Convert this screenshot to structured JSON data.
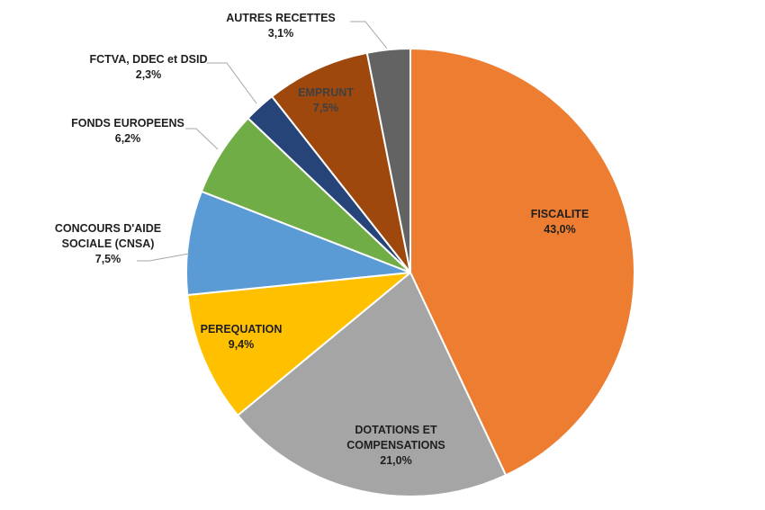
{
  "chart_data": {
    "type": "pie",
    "title": "",
    "slices": [
      {
        "label": [
          "FISCALITE"
        ],
        "pct": "43,0%",
        "value": 43.0,
        "color": "#ED7D31",
        "label_color": "#1f1f1f",
        "label_pos": "inside"
      },
      {
        "label": [
          "DOTATIONS ET",
          "COMPENSATIONS"
        ],
        "pct": "21,0%",
        "value": 21.0,
        "color": "#A5A5A5",
        "label_color": "#1f1f1f",
        "label_pos": "inside"
      },
      {
        "label": [
          "PEREQUATION"
        ],
        "pct": "9,4%",
        "value": 9.4,
        "color": "#FFC000",
        "label_color": "#1f1f1f",
        "label_pos": "inside"
      },
      {
        "label": [
          "CONCOURS D'AIDE",
          "SOCIALE (CNSA)"
        ],
        "pct": "7,5%",
        "value": 7.5,
        "color": "#5B9BD5",
        "label_color": "#1f1f1f",
        "label_pos": "outside"
      },
      {
        "label": [
          "FONDS EUROPEENS"
        ],
        "pct": "6,2%",
        "value": 6.2,
        "color": "#70AD47",
        "label_color": "#1f1f1f",
        "label_pos": "outside"
      },
      {
        "label": [
          "FCTVA, DDEC et DSID"
        ],
        "pct": "2,3%",
        "value": 2.3,
        "color": "#264478",
        "label_color": "#1f1f1f",
        "label_pos": "outside"
      },
      {
        "label": [
          "EMPRUNT"
        ],
        "pct": "7,5%",
        "value": 7.5,
        "color": "#9E480E",
        "label_color": "#404040",
        "label_pos": "inside"
      },
      {
        "label": [
          "AUTRES RECETTES"
        ],
        "pct": "3,1%",
        "value": 3.1,
        "color": "#636363",
        "label_color": "#1f1f1f",
        "label_pos": "outside"
      }
    ],
    "start_angle_deg": 0,
    "direction": "clockwise",
    "legend": "none",
    "leader_line_color": "#a6a6a6"
  }
}
